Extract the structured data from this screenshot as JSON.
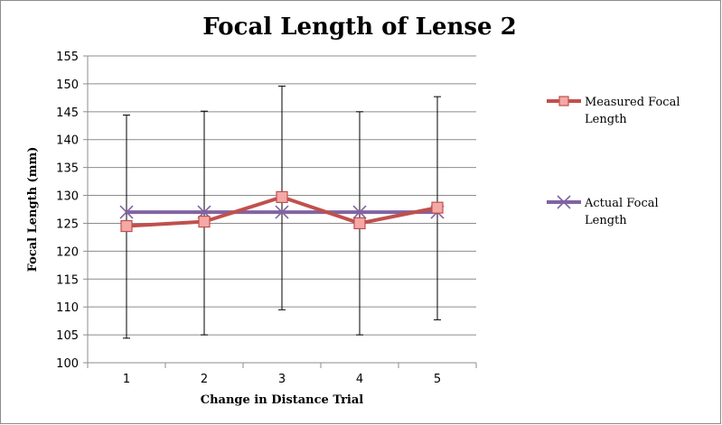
{
  "chart_data": {
    "type": "line",
    "title": "Focal Length of Lense 2",
    "xlabel": "Change in Distance Trial",
    "ylabel": "Focal Length (mm)",
    "categories": [
      "1",
      "2",
      "3",
      "4",
      "5"
    ],
    "ylim": [
      100,
      155
    ],
    "yticks": [
      "100",
      "105",
      "110",
      "115",
      "120",
      "125",
      "130",
      "135",
      "140",
      "145",
      "150",
      "155"
    ],
    "grid": "horizontal",
    "legend_position": "right",
    "series": [
      {
        "name": "Measured Focal Length",
        "legend_lines": [
          "Measured Focal",
          "Length"
        ],
        "values": [
          124.5,
          125.3,
          129.7,
          125.0,
          127.8
        ],
        "error_low": [
          104.4,
          105.0,
          109.5,
          105.0,
          107.7
        ],
        "error_high": [
          144.4,
          145.1,
          149.6,
          145.0,
          147.7
        ],
        "color": "#c0504d",
        "marker": "square"
      },
      {
        "name": "Actual Focal Length",
        "legend_lines": [
          "Actual Focal",
          "Length"
        ],
        "values": [
          127,
          127,
          127,
          127,
          127
        ],
        "color": "#8064a2",
        "marker": "x"
      }
    ]
  }
}
